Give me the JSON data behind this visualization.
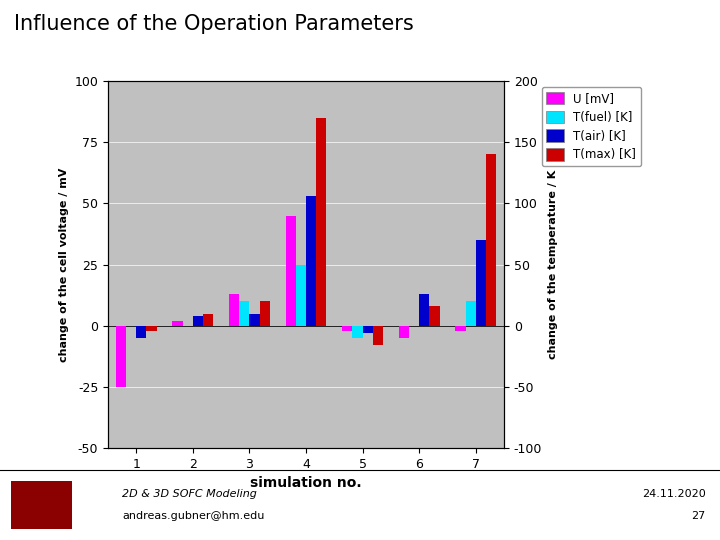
{
  "title": "Influence of the Operation Parameters",
  "xlabel": "simulation no.",
  "ylabel_left": "change of the cell voltage / mV",
  "ylabel_right": "change of the temperature / K",
  "categories": [
    1,
    2,
    3,
    4,
    5,
    6,
    7
  ],
  "U_mV": [
    -25,
    2,
    13,
    45,
    -2,
    -5,
    -2
  ],
  "T_fuel_K": [
    0,
    0,
    10,
    25,
    -5,
    0,
    10
  ],
  "T_air_K": [
    -5,
    4,
    5,
    53,
    -3,
    13,
    35
  ],
  "T_max_K": [
    -2,
    5,
    10,
    85,
    -8,
    8,
    70
  ],
  "color_U": "#ff00ff",
  "color_Tfuel": "#00e5ff",
  "color_Tair": "#0000cd",
  "color_Tmax": "#cc0000",
  "ylim_left": [
    -50,
    100
  ],
  "ylim_right": [
    -100,
    200
  ],
  "background_color": "#c0c0c0",
  "plot_bg": "#c8c8c8",
  "legend_labels": [
    "U [mV]",
    "T(fuel) [K]",
    "T(air) [K]",
    "T(max) [K]"
  ],
  "footer_left": "2D & 3D SOFC Modeling",
  "footer_email": "andreas.gubner@hm.edu",
  "footer_right": "24.11.2020",
  "footer_page": "27",
  "bar_width": 0.18,
  "title_fontsize": 15
}
